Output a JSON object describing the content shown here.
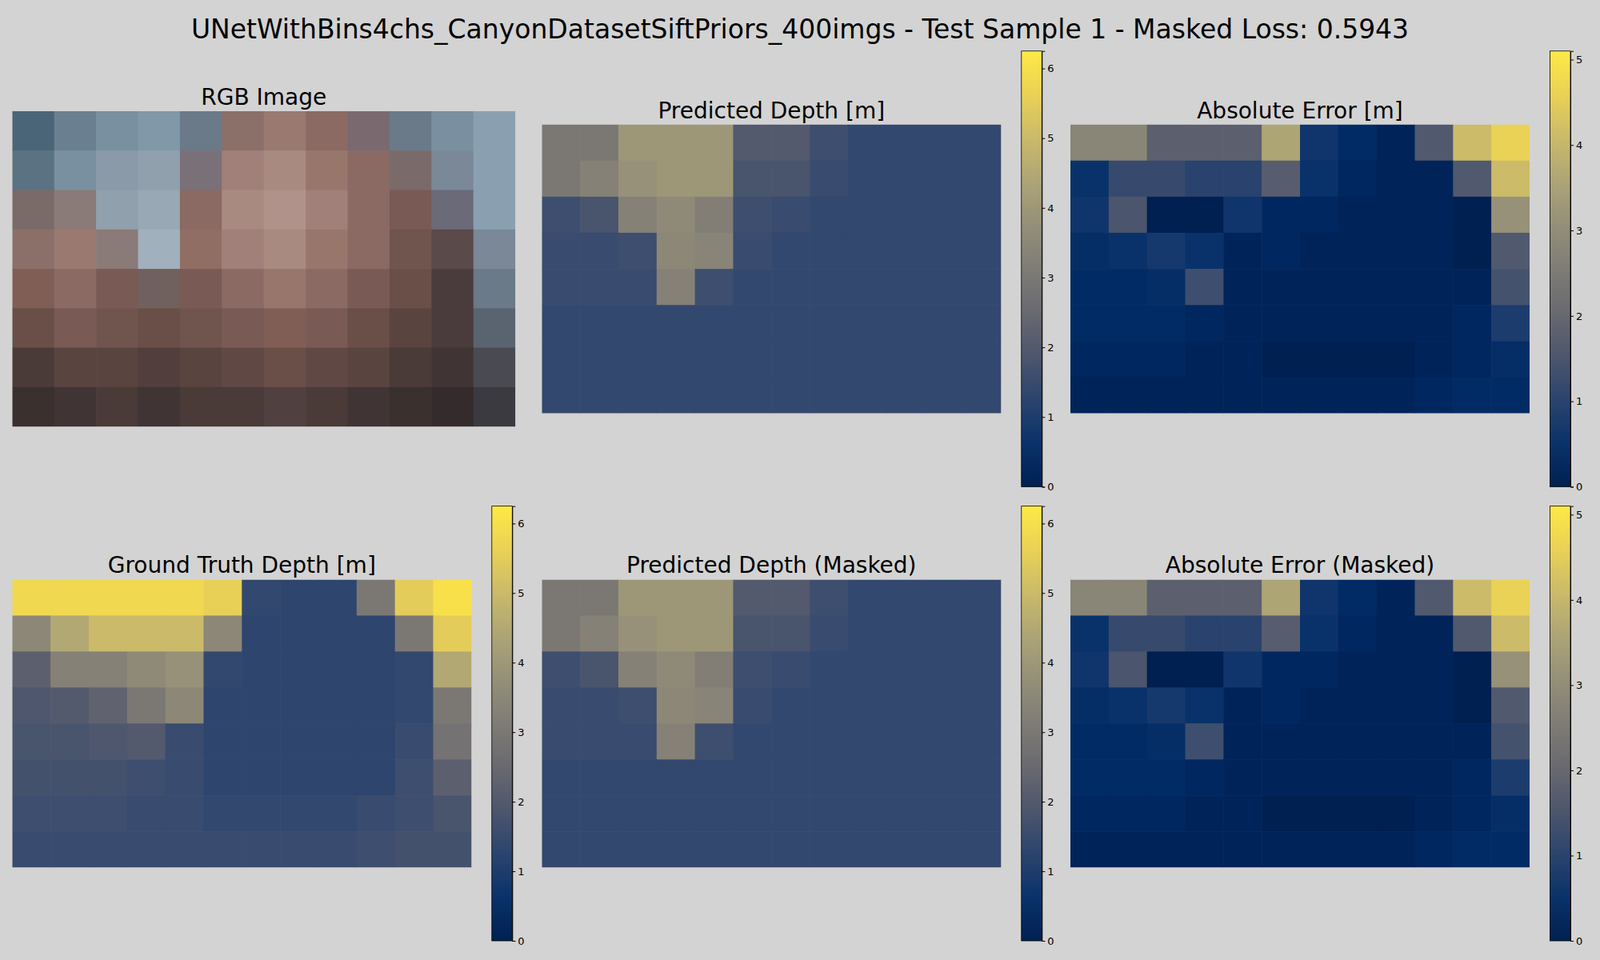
{
  "title": "UNetWithBins4chs_CanyonDatasetSiftPriors_400imgs - Test Sample 1 - Masked Loss: 0.5943",
  "chart_data": [
    {
      "type": "image",
      "title": "RGB Image",
      "cells": [
        [
          "#4a6478",
          "#6a8090",
          "#7890a0",
          "#8098a8",
          "#6a7a88",
          "#8a7068",
          "#9a7a70",
          "#8a6a62",
          "#7a6a70",
          "#6a7a88",
          "#7a8fa0",
          "#8aa0b0"
        ],
        [
          "#5a7282",
          "#7890a0",
          "#8a9aa8",
          "#90a0ac",
          "#7a7078",
          "#a08078",
          "#a88a80",
          "#98766c",
          "#8a6a62",
          "#7a6a6a",
          "#7a8898",
          "#8aa0b0"
        ],
        [
          "#7a6a68",
          "#8a7a78",
          "#90a0ac",
          "#98a8b4",
          "#8a6a62",
          "#a88a80",
          "#b0928a",
          "#a08078",
          "#8a6a62",
          "#7a5a54",
          "#6a6a78",
          "#8aa0b0"
        ],
        [
          "#8a7068",
          "#9a7a70",
          "#8a7a78",
          "#a0b0bc",
          "#906e64",
          "#a08078",
          "#a88a80",
          "#98766c",
          "#8a6a62",
          "#70544e",
          "#5a4a4a",
          "#7a8898"
        ],
        [
          "#805e56",
          "#8a6a62",
          "#7a5a54",
          "#70605e",
          "#7a5a54",
          "#8a6a62",
          "#98766c",
          "#8a6a62",
          "#7a5a54",
          "#6a4e48",
          "#4a3c3c",
          "#6a7a88"
        ],
        [
          "#6a4e48",
          "#7a5a54",
          "#70544e",
          "#6a4e48",
          "#70544e",
          "#7a5a54",
          "#805e56",
          "#7a5a54",
          "#6a4e48",
          "#5a4440",
          "#4a3c3c",
          "#5a6470"
        ],
        [
          "#4a3a38",
          "#5a4440",
          "#5a4440",
          "#523e3c",
          "#5a4440",
          "#604844",
          "#6a4e48",
          "#604844",
          "#5a4440",
          "#4a3a38",
          "#403434",
          "#4a4a52"
        ],
        [
          "#3a302e",
          "#403434",
          "#4a3a38",
          "#403434",
          "#4a3a38",
          "#4a3a38",
          "#504040",
          "#4a3a38",
          "#403434",
          "#3a302e",
          "#342c2c",
          "#3a3a40"
        ]
      ]
    },
    {
      "type": "heatmap",
      "title": "Predicted Depth [m]",
      "cells": [
        [
          3.0,
          3.0,
          4.0,
          4.0,
          4.0,
          2.0,
          2.0,
          1.6,
          1.4,
          1.4,
          1.4,
          1.4
        ],
        [
          3.0,
          3.3,
          3.8,
          4.0,
          4.0,
          1.8,
          1.8,
          1.5,
          1.4,
          1.4,
          1.4,
          1.4
        ],
        [
          1.6,
          1.8,
          3.3,
          3.6,
          3.2,
          1.6,
          1.5,
          1.4,
          1.4,
          1.4,
          1.4,
          1.4
        ],
        [
          1.5,
          1.5,
          1.6,
          3.5,
          3.4,
          1.5,
          1.4,
          1.4,
          1.4,
          1.4,
          1.4,
          1.4
        ],
        [
          1.5,
          1.5,
          1.5,
          3.3,
          1.6,
          1.4,
          1.4,
          1.4,
          1.4,
          1.4,
          1.4,
          1.4
        ],
        [
          1.4,
          1.4,
          1.4,
          1.4,
          1.4,
          1.4,
          1.4,
          1.4,
          1.4,
          1.4,
          1.4,
          1.4
        ],
        [
          1.4,
          1.4,
          1.4,
          1.4,
          1.4,
          1.4,
          1.4,
          1.4,
          1.4,
          1.4,
          1.4,
          1.4
        ],
        [
          1.4,
          1.4,
          1.4,
          1.4,
          1.4,
          1.4,
          1.4,
          1.4,
          1.4,
          1.4,
          1.4,
          1.4
        ]
      ],
      "colorbar": {
        "range": [
          0,
          6.25
        ],
        "ticks": [
          0,
          1,
          2,
          3,
          4,
          5,
          6
        ]
      }
    },
    {
      "type": "heatmap",
      "title": "Absolute Error [m]",
      "cells": [
        [
          2.8,
          2.8,
          1.8,
          1.8,
          1.8,
          3.6,
          0.6,
          0.3,
          0.1,
          1.6,
          4.1,
          4.6
        ],
        [
          0.5,
          1.2,
          1.2,
          1.0,
          1.0,
          1.7,
          0.5,
          0.2,
          0.1,
          0.1,
          1.6,
          4.1
        ],
        [
          0.6,
          1.5,
          0.0,
          0.0,
          0.6,
          0.2,
          0.2,
          0.1,
          0.1,
          0.1,
          0.0,
          3.1
        ],
        [
          0.4,
          0.5,
          0.7,
          0.5,
          0.1,
          0.2,
          0.1,
          0.1,
          0.1,
          0.1,
          0.0,
          1.6
        ],
        [
          0.3,
          0.3,
          0.4,
          1.3,
          0.1,
          0.1,
          0.1,
          0.1,
          0.1,
          0.1,
          0.1,
          1.4
        ],
        [
          0.3,
          0.3,
          0.3,
          0.2,
          0.1,
          0.1,
          0.1,
          0.1,
          0.1,
          0.1,
          0.2,
          0.8
        ],
        [
          0.2,
          0.2,
          0.2,
          0.1,
          0.1,
          0.0,
          0.0,
          0.0,
          0.0,
          0.1,
          0.2,
          0.4
        ],
        [
          0.1,
          0.1,
          0.1,
          0.1,
          0.1,
          0.1,
          0.1,
          0.1,
          0.1,
          0.2,
          0.3,
          0.3
        ]
      ],
      "colorbar": {
        "range": [
          0,
          5.1
        ],
        "ticks": [
          0,
          1,
          2,
          3,
          4,
          5
        ]
      }
    },
    {
      "type": "heatmap",
      "title": "Ground Truth Depth [m]",
      "cells": [
        [
          5.8,
          5.8,
          5.8,
          5.8,
          5.8,
          5.6,
          1.4,
          1.3,
          1.3,
          3.0,
          5.5,
          6.0
        ],
        [
          3.5,
          4.5,
          5.0,
          5.0,
          5.0,
          3.5,
          1.3,
          1.3,
          1.3,
          1.3,
          3.0,
          5.5
        ],
        [
          2.2,
          3.3,
          3.3,
          3.6,
          3.8,
          1.4,
          1.3,
          1.3,
          1.3,
          1.3,
          1.4,
          4.5
        ],
        [
          1.9,
          2.0,
          2.3,
          3.0,
          3.5,
          1.3,
          1.3,
          1.3,
          1.3,
          1.3,
          1.4,
          3.0
        ],
        [
          1.8,
          1.8,
          1.9,
          2.0,
          1.5,
          1.3,
          1.3,
          1.3,
          1.3,
          1.3,
          1.5,
          2.8
        ],
        [
          1.7,
          1.7,
          1.7,
          1.6,
          1.5,
          1.3,
          1.3,
          1.3,
          1.3,
          1.3,
          1.6,
          2.2
        ],
        [
          1.6,
          1.6,
          1.6,
          1.5,
          1.5,
          1.4,
          1.4,
          1.4,
          1.4,
          1.5,
          1.6,
          1.8
        ],
        [
          1.5,
          1.5,
          1.5,
          1.5,
          1.5,
          1.5,
          1.5,
          1.5,
          1.5,
          1.6,
          1.7,
          1.7
        ]
      ],
      "colorbar": {
        "range": [
          0,
          6.25
        ],
        "ticks": [
          0,
          1,
          2,
          3,
          4,
          5,
          6
        ]
      }
    },
    {
      "type": "heatmap",
      "title": "Predicted Depth (Masked)",
      "cells": [
        [
          3.0,
          3.0,
          4.0,
          4.0,
          4.0,
          2.0,
          2.0,
          1.6,
          1.4,
          1.4,
          1.4,
          1.4
        ],
        [
          3.0,
          3.3,
          3.8,
          4.0,
          4.0,
          1.8,
          1.8,
          1.5,
          1.4,
          1.4,
          1.4,
          1.4
        ],
        [
          1.6,
          1.8,
          3.3,
          3.6,
          3.2,
          1.6,
          1.5,
          1.4,
          1.4,
          1.4,
          1.4,
          1.4
        ],
        [
          1.5,
          1.5,
          1.6,
          3.5,
          3.4,
          1.5,
          1.4,
          1.4,
          1.4,
          1.4,
          1.4,
          1.4
        ],
        [
          1.5,
          1.5,
          1.5,
          3.3,
          1.6,
          1.4,
          1.4,
          1.4,
          1.4,
          1.4,
          1.4,
          1.4
        ],
        [
          1.4,
          1.4,
          1.4,
          1.4,
          1.4,
          1.4,
          1.4,
          1.4,
          1.4,
          1.4,
          1.4,
          1.4
        ],
        [
          1.4,
          1.4,
          1.4,
          1.4,
          1.4,
          1.4,
          1.4,
          1.4,
          1.4,
          1.4,
          1.4,
          1.4
        ],
        [
          1.4,
          1.4,
          1.4,
          1.4,
          1.4,
          1.4,
          1.4,
          1.4,
          1.4,
          1.4,
          1.4,
          1.4
        ]
      ],
      "colorbar": {
        "range": [
          0,
          6.25
        ],
        "ticks": [
          0,
          1,
          2,
          3,
          4,
          5,
          6
        ]
      }
    },
    {
      "type": "heatmap",
      "title": "Absolute Error (Masked)",
      "cells": [
        [
          2.8,
          2.8,
          1.8,
          1.8,
          1.8,
          3.6,
          0.6,
          0.3,
          0.1,
          1.6,
          4.1,
          4.6
        ],
        [
          0.5,
          1.2,
          1.2,
          1.0,
          1.0,
          1.7,
          0.5,
          0.2,
          0.1,
          0.1,
          1.6,
          4.1
        ],
        [
          0.6,
          1.5,
          0.0,
          0.0,
          0.6,
          0.2,
          0.2,
          0.1,
          0.1,
          0.1,
          0.0,
          3.1
        ],
        [
          0.4,
          0.5,
          0.7,
          0.5,
          0.1,
          0.2,
          0.1,
          0.1,
          0.1,
          0.1,
          0.0,
          1.6
        ],
        [
          0.3,
          0.3,
          0.4,
          1.3,
          0.1,
          0.1,
          0.1,
          0.1,
          0.1,
          0.1,
          0.1,
          1.4
        ],
        [
          0.3,
          0.3,
          0.3,
          0.2,
          0.1,
          0.1,
          0.1,
          0.1,
          0.1,
          0.1,
          0.2,
          0.8
        ],
        [
          0.2,
          0.2,
          0.2,
          0.1,
          0.1,
          0.0,
          0.0,
          0.0,
          0.0,
          0.1,
          0.2,
          0.4
        ],
        [
          0.1,
          0.1,
          0.1,
          0.1,
          0.1,
          0.1,
          0.1,
          0.1,
          0.1,
          0.2,
          0.3,
          0.3
        ]
      ],
      "colorbar": {
        "range": [
          0,
          5.1
        ],
        "ticks": [
          0,
          1,
          2,
          3,
          4,
          5
        ]
      }
    }
  ]
}
